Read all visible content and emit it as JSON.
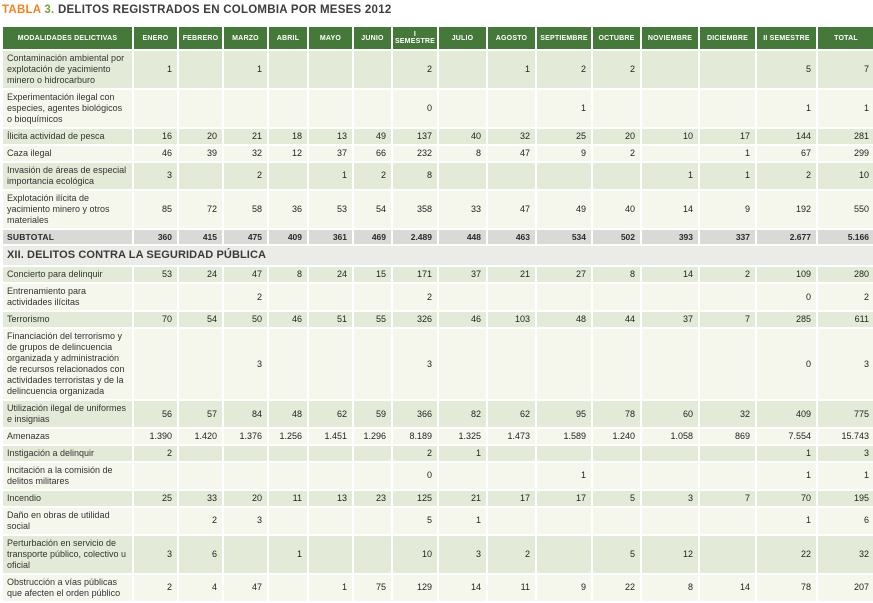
{
  "title": {
    "tabla": "TABLA",
    "number": "3.",
    "text": "DELITOS REGISTRADOS EN COLOMBIA POR MESES 2012"
  },
  "colors": {
    "header_green": "#45793a",
    "row_green": "#e4ead8",
    "row_white": "#f5f7ed",
    "subtotal_gray": "#d9d9d5",
    "section_gray": "#ebebe8",
    "title_orange": "#f58220",
    "title_green": "#73a53e"
  },
  "table": {
    "columns": [
      "MODALIDADES DELICTIVAS",
      "ENERO",
      "FEBRERO",
      "MARZO",
      "ABRIL",
      "MAYO",
      "JUNIO",
      "I SEMESTRE",
      "JULIO",
      "AGOSTO",
      "SEPTIEMBRE",
      "OCTUBRE",
      "NOVIEMBRE",
      "DICIEMBRE",
      "II SEMESTRE",
      "TOTAL"
    ],
    "rows": [
      {
        "type": "data",
        "label": "Contaminación ambiental por explotación de yacimiento minero o hidrocarburo",
        "values": [
          "1",
          "",
          "1",
          "",
          "",
          "",
          "2",
          "",
          "1",
          "2",
          "2",
          "",
          "",
          "5",
          "7"
        ]
      },
      {
        "type": "data",
        "label": "Experimentación ilegal con especies, agentes biológicos o bioquímicos",
        "values": [
          "",
          "",
          "",
          "",
          "",
          "",
          "0",
          "",
          "",
          "1",
          "",
          "",
          "",
          "1",
          "1"
        ]
      },
      {
        "type": "data",
        "label": "Ílicita actividad de pesca",
        "values": [
          "16",
          "20",
          "21",
          "18",
          "13",
          "49",
          "137",
          "40",
          "32",
          "25",
          "20",
          "10",
          "17",
          "144",
          "281"
        ]
      },
      {
        "type": "data",
        "label": "Caza ilegal",
        "values": [
          "46",
          "39",
          "32",
          "12",
          "37",
          "66",
          "232",
          "8",
          "47",
          "9",
          "2",
          "",
          "1",
          "67",
          "299"
        ]
      },
      {
        "type": "data",
        "label": "Invasión de áreas de especial importancia ecológica",
        "values": [
          "3",
          "",
          "2",
          "",
          "1",
          "2",
          "8",
          "",
          "",
          "",
          "",
          "1",
          "1",
          "2",
          "10"
        ]
      },
      {
        "type": "data",
        "label": "Explotación ilícita de yacimiento minero y otros materiales",
        "values": [
          "85",
          "72",
          "58",
          "36",
          "53",
          "54",
          "358",
          "33",
          "47",
          "49",
          "40",
          "14",
          "9",
          "192",
          "550"
        ]
      },
      {
        "type": "subtotal",
        "label": "SUBTOTAL",
        "values": [
          "360",
          "415",
          "475",
          "409",
          "361",
          "469",
          "2.489",
          "448",
          "463",
          "534",
          "502",
          "393",
          "337",
          "2.677",
          "5.166"
        ]
      },
      {
        "type": "section",
        "label": "XII. DELITOS CONTRA LA SEGURIDAD PÚBLICA"
      },
      {
        "type": "data",
        "label": "Concierto para delinquir",
        "values": [
          "53",
          "24",
          "47",
          "8",
          "24",
          "15",
          "171",
          "37",
          "21",
          "27",
          "8",
          "14",
          "2",
          "109",
          "280"
        ]
      },
      {
        "type": "data",
        "label": "Entrenamiento para actividades ilícitas",
        "values": [
          "",
          "",
          "2",
          "",
          "",
          "",
          "2",
          "",
          "",
          "",
          "",
          "",
          "",
          "0",
          "2"
        ]
      },
      {
        "type": "data",
        "label": "Terrorismo",
        "values": [
          "70",
          "54",
          "50",
          "46",
          "51",
          "55",
          "326",
          "46",
          "103",
          "48",
          "44",
          "37",
          "7",
          "285",
          "611"
        ]
      },
      {
        "type": "data",
        "label": "Financiación del terrorismo y de grupos de delincuencia organizada y administración de recursos relacionados con actividades terroristas y de la delincuencia organizada",
        "values": [
          "",
          "",
          "3",
          "",
          "",
          "",
          "3",
          "",
          "",
          "",
          "",
          "",
          "",
          "0",
          "3"
        ]
      },
      {
        "type": "data",
        "label": "Utilización ilegal de uniformes e insignias",
        "values": [
          "56",
          "57",
          "84",
          "48",
          "62",
          "59",
          "366",
          "82",
          "62",
          "95",
          "78",
          "60",
          "32",
          "409",
          "775"
        ]
      },
      {
        "type": "data",
        "label": "Amenazas",
        "values": [
          "1.390",
          "1.420",
          "1.376",
          "1.256",
          "1.451",
          "1.296",
          "8.189",
          "1.325",
          "1.473",
          "1.589",
          "1.240",
          "1.058",
          "869",
          "7.554",
          "15.743"
        ]
      },
      {
        "type": "data",
        "label": "Instigación a delinquir",
        "values": [
          "2",
          "",
          "",
          "",
          "",
          "",
          "2",
          "1",
          "",
          "",
          "",
          "",
          "",
          "1",
          "3"
        ]
      },
      {
        "type": "data",
        "label": "Incitación a la comisión de delitos militares",
        "values": [
          "",
          "",
          "",
          "",
          "",
          "",
          "0",
          "",
          "",
          "1",
          "",
          "",
          "",
          "1",
          "1"
        ]
      },
      {
        "type": "data",
        "label": "Incendio",
        "values": [
          "25",
          "33",
          "20",
          "11",
          "13",
          "23",
          "125",
          "21",
          "17",
          "17",
          "5",
          "3",
          "7",
          "70",
          "195"
        ]
      },
      {
        "type": "data",
        "label": "Daño en obras de utilidad social",
        "values": [
          "",
          "2",
          "3",
          "",
          "",
          "",
          "5",
          "1",
          "",
          "",
          "",
          "",
          "",
          "1",
          "6"
        ]
      },
      {
        "type": "data",
        "label": "Perturbación en servicio de transporte público, colectivo u oficial",
        "values": [
          "3",
          "6",
          "",
          "1",
          "",
          "",
          "10",
          "3",
          "2",
          "",
          "5",
          "12",
          "",
          "22",
          "32"
        ]
      },
      {
        "type": "data",
        "label": "Obstrucción a vías públicas que afecten el orden público",
        "values": [
          "2",
          "4",
          "47",
          "",
          "1",
          "75",
          "129",
          "14",
          "11",
          "9",
          "22",
          "8",
          "14",
          "78",
          "207"
        ]
      }
    ]
  }
}
